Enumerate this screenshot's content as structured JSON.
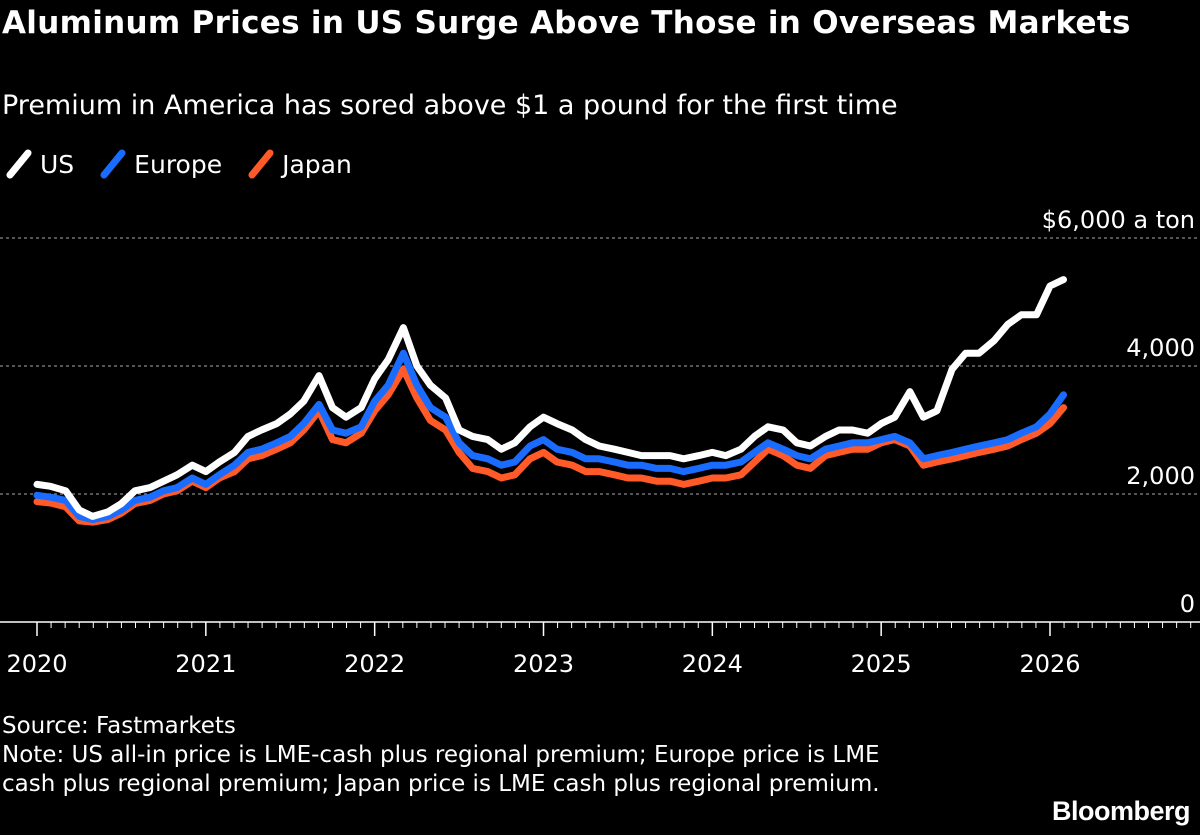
{
  "header": {
    "title": "Aluminum Prices in US Surge Above Those in Overseas Markets",
    "subtitle": "Premium in America has sored above $1 a pound for the first time"
  },
  "legend": [
    {
      "label": "US",
      "color": "#ffffff"
    },
    {
      "label": "Europe",
      "color": "#1a6cff"
    },
    {
      "label": "Japan",
      "color": "#ff5a28"
    }
  ],
  "footer": {
    "source": "Source: Fastmarkets",
    "note": "Note: US all-in price is LME-cash plus regional premium; Europe price is LME cash plus regional premium; Japan price is LME cash plus regional premium.",
    "brand": "Bloomberg"
  },
  "chart_data": {
    "type": "line",
    "title": "Aluminum Prices in US Surge Above Those in Overseas Markets",
    "ylabel": "$ a ton",
    "ylim": [
      0,
      6000
    ],
    "xlim": [
      2020.0,
      2026.7
    ],
    "y_ticks": [
      {
        "value": 0,
        "label": "0"
      },
      {
        "value": 2000,
        "label": "2,000"
      },
      {
        "value": 4000,
        "label": "4,000"
      },
      {
        "value": 6000,
        "label": "$6,000 a ton"
      }
    ],
    "x_ticks": [
      {
        "value": 2020,
        "label": "2020"
      },
      {
        "value": 2021,
        "label": "2021"
      },
      {
        "value": 2022,
        "label": "2022"
      },
      {
        "value": 2023,
        "label": "2023"
      },
      {
        "value": 2024,
        "label": "2024"
      },
      {
        "value": 2025,
        "label": "2025"
      },
      {
        "value": 2026,
        "label": "2026"
      }
    ],
    "x": [
      2020.0,
      2020.08,
      2020.17,
      2020.25,
      2020.33,
      2020.42,
      2020.5,
      2020.58,
      2020.67,
      2020.75,
      2020.83,
      2020.92,
      2021.0,
      2021.08,
      2021.17,
      2021.25,
      2021.33,
      2021.42,
      2021.5,
      2021.58,
      2021.67,
      2021.75,
      2021.83,
      2021.92,
      2022.0,
      2022.08,
      2022.17,
      2022.25,
      2022.33,
      2022.42,
      2022.5,
      2022.58,
      2022.67,
      2022.75,
      2022.83,
      2022.92,
      2023.0,
      2023.08,
      2023.17,
      2023.25,
      2023.33,
      2023.42,
      2023.5,
      2023.58,
      2023.67,
      2023.75,
      2023.83,
      2023.92,
      2024.0,
      2024.08,
      2024.17,
      2024.25,
      2024.33,
      2024.42,
      2024.5,
      2024.58,
      2024.67,
      2024.75,
      2024.83,
      2024.92,
      2025.0,
      2025.08,
      2025.17,
      2025.25,
      2025.33,
      2025.42,
      2025.5,
      2025.58,
      2025.67,
      2025.75,
      2025.83,
      2025.92,
      2026.0,
      2026.08
    ],
    "series": [
      {
        "name": "US",
        "color": "#ffffff",
        "values": [
          2150,
          2120,
          2050,
          1750,
          1650,
          1720,
          1850,
          2050,
          2100,
          2200,
          2300,
          2450,
          2350,
          2500,
          2650,
          2900,
          3000,
          3100,
          3250,
          3450,
          3850,
          3350,
          3200,
          3350,
          3800,
          4100,
          4600,
          4000,
          3700,
          3500,
          3000,
          2900,
          2850,
          2700,
          2800,
          3050,
          3200,
          3100,
          3000,
          2850,
          2750,
          2700,
          2650,
          2600,
          2600,
          2600,
          2550,
          2600,
          2650,
          2600,
          2700,
          2900,
          3050,
          3000,
          2800,
          2750,
          2900,
          3000,
          3000,
          2950,
          3100,
          3200,
          3600,
          3200,
          3300,
          3950,
          4200,
          4200,
          4400,
          4650,
          4800,
          4800,
          5250,
          5350
        ]
      },
      {
        "name": "Europe",
        "color": "#1a6cff",
        "values": [
          1980,
          1950,
          1900,
          1650,
          1600,
          1650,
          1750,
          1900,
          1950,
          2050,
          2100,
          2250,
          2150,
          2300,
          2450,
          2650,
          2700,
          2800,
          2900,
          3100,
          3400,
          3000,
          2950,
          3050,
          3450,
          3700,
          4200,
          3700,
          3350,
          3200,
          2800,
          2600,
          2550,
          2450,
          2500,
          2750,
          2850,
          2700,
          2650,
          2550,
          2550,
          2500,
          2450,
          2450,
          2400,
          2400,
          2350,
          2400,
          2450,
          2450,
          2500,
          2650,
          2800,
          2700,
          2600,
          2550,
          2700,
          2750,
          2800,
          2800,
          2850,
          2900,
          2800,
          2550,
          2600,
          2650,
          2700,
          2750,
          2800,
          2850,
          2950,
          3050,
          3250,
          3550
        ]
      },
      {
        "name": "Japan",
        "color": "#ff5a28",
        "values": [
          1880,
          1860,
          1800,
          1580,
          1560,
          1600,
          1700,
          1850,
          1900,
          2000,
          2050,
          2200,
          2100,
          2250,
          2350,
          2550,
          2600,
          2700,
          2800,
          3000,
          3300,
          2850,
          2800,
          2950,
          3300,
          3550,
          3950,
          3500,
          3150,
          3000,
          2650,
          2400,
          2350,
          2250,
          2300,
          2550,
          2650,
          2500,
          2450,
          2350,
          2350,
          2300,
          2250,
          2250,
          2200,
          2200,
          2150,
          2200,
          2250,
          2250,
          2300,
          2500,
          2700,
          2600,
          2450,
          2400,
          2600,
          2650,
          2700,
          2700,
          2800,
          2850,
          2750,
          2450,
          2500,
          2550,
          2600,
          2650,
          2700,
          2750,
          2850,
          2950,
          3100,
          3350
        ]
      }
    ]
  }
}
